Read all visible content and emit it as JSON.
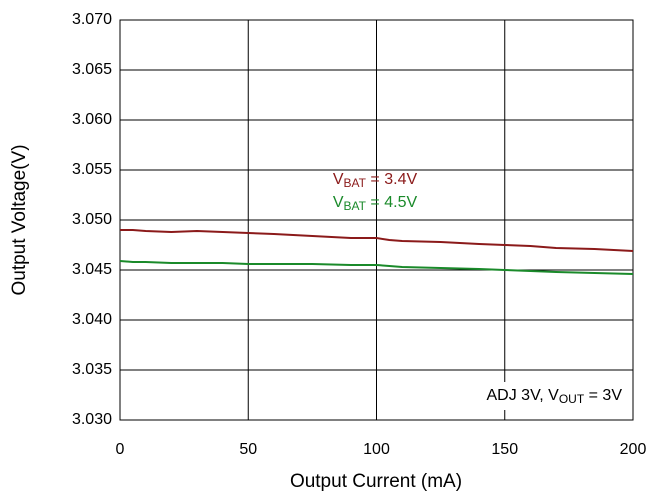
{
  "chart_data": {
    "type": "line",
    "x_label": "Output Current (mA)",
    "y_label": "Output Voltage(V)",
    "x": [
      0,
      5,
      10,
      20,
      30,
      40,
      50,
      60,
      75,
      90,
      100,
      105,
      110,
      125,
      140,
      150,
      160,
      170,
      185,
      200
    ],
    "series": [
      {
        "name": {
          "main": "V",
          "sub": "BAT",
          "rest": " = 3.4V"
        },
        "color": "#8b1a1a",
        "values": [
          3.049,
          3.049,
          3.0489,
          3.0488,
          3.0489,
          3.0488,
          3.0487,
          3.0486,
          3.0484,
          3.0482,
          3.0482,
          3.048,
          3.0479,
          3.0478,
          3.0476,
          3.0475,
          3.0474,
          3.0472,
          3.0471,
          3.0469
        ]
      },
      {
        "name": {
          "main": "V",
          "sub": "BAT",
          "rest": " = 4.5V"
        },
        "color": "#1a8a2a",
        "values": [
          3.0459,
          3.0458,
          3.0458,
          3.0457,
          3.0457,
          3.0457,
          3.0456,
          3.0456,
          3.0456,
          3.0455,
          3.0455,
          3.0454,
          3.0453,
          3.0452,
          3.0451,
          3.045,
          3.0449,
          3.0448,
          3.0447,
          3.0446
        ]
      }
    ],
    "annotation": {
      "main": "ADJ 3V, V",
      "sub": "OUT",
      "rest": " = 3V"
    },
    "xlim": [
      0,
      200
    ],
    "xticks": [
      0,
      50,
      100,
      150,
      200
    ],
    "ylim": [
      3.03,
      3.07
    ],
    "yticks": [
      {
        "value": 3.03,
        "label": "3.030"
      },
      3.035,
      {
        "value": 3.04,
        "label": "3.040"
      },
      3.045,
      {
        "value": 3.05,
        "label": "3.050"
      },
      3.055,
      {
        "value": 3.06,
        "label": "3.060"
      },
      3.065,
      {
        "value": 3.07,
        "label": "3.070"
      }
    ],
    "grid": true
  }
}
